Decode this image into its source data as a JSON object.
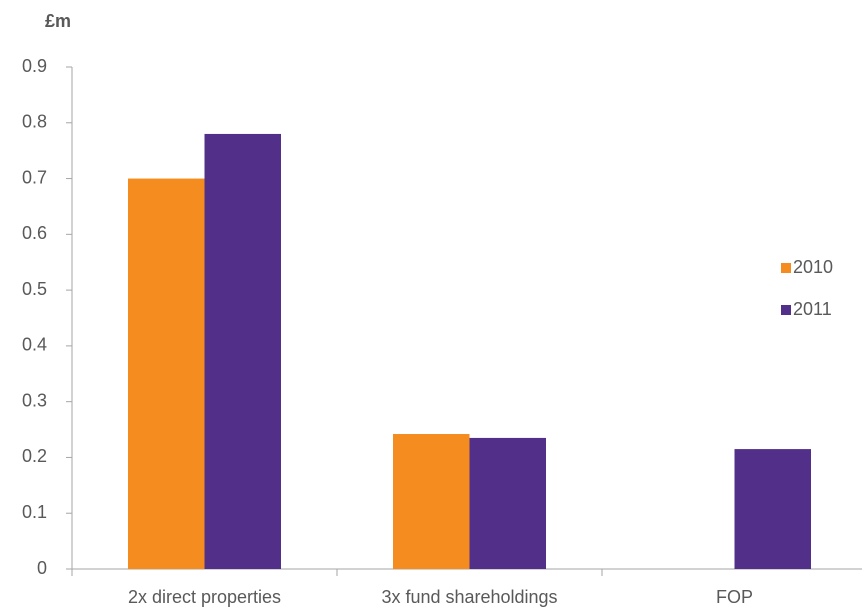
{
  "chart_data": {
    "type": "bar",
    "y_axis_label": "£m",
    "categories": [
      "2x direct properties",
      "3x fund shareholdings",
      "FOP"
    ],
    "series": [
      {
        "name": "2010",
        "color": "#f58c1f",
        "values": [
          0.7,
          0.242,
          null
        ]
      },
      {
        "name": "2011",
        "color": "#52308a",
        "values": [
          0.78,
          0.235,
          0.215
        ]
      }
    ],
    "ylim": [
      0,
      0.9
    ],
    "yticks": [
      0,
      0.1,
      0.2,
      0.3,
      0.4,
      0.5,
      0.6,
      0.7,
      0.8,
      0.9
    ],
    "grid": false,
    "legend": "right"
  }
}
